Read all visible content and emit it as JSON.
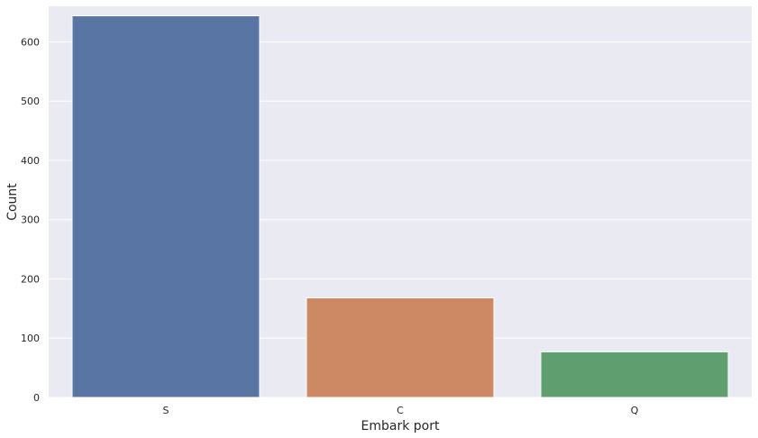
{
  "chart_data": {
    "type": "bar",
    "title": "",
    "xlabel": "Embark port",
    "ylabel": "Count",
    "categories": [
      "S",
      "C",
      "Q"
    ],
    "values": [
      644,
      168,
      77
    ],
    "colors": [
      "#5975a4",
      "#cc8963",
      "#5f9e6e"
    ],
    "ylim": [
      0,
      660
    ],
    "yticks": [
      0,
      100,
      200,
      300,
      400,
      500,
      600
    ],
    "ytick_labels": [
      "0",
      "100",
      "200",
      "300",
      "400",
      "500",
      "600"
    ],
    "grid": true,
    "legend": "none",
    "style": {
      "plot_background": "#eaeaf2",
      "grid_color": "#ffffff"
    }
  }
}
